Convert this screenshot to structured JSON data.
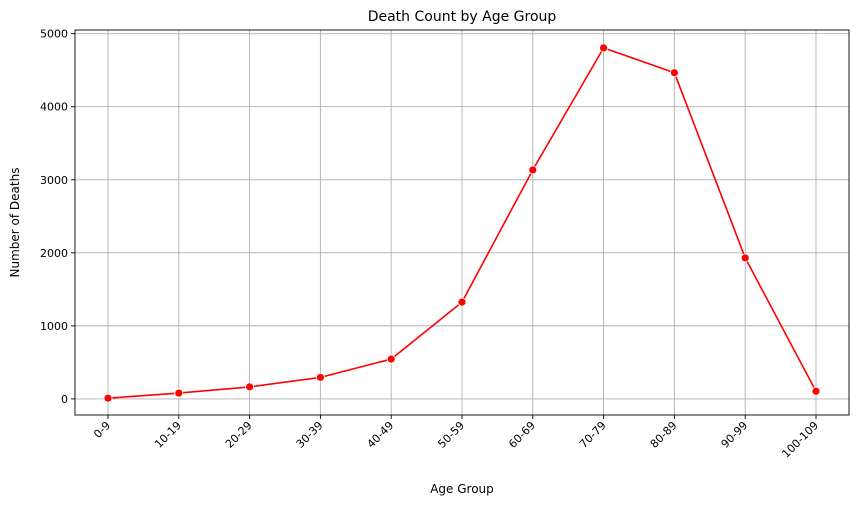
{
  "chart_data": {
    "type": "line",
    "title": "Death Count by Age Group",
    "xlabel": "Age Group",
    "ylabel": "Number of Deaths",
    "categories": [
      "0-9",
      "10-19",
      "20-29",
      "30-39",
      "40-49",
      "50-59",
      "60-69",
      "70-79",
      "80-89",
      "90-99",
      "100-109"
    ],
    "series": [
      {
        "values": [
          10,
          80,
          165,
          295,
          545,
          1325,
          3135,
          4805,
          4465,
          1930,
          105
        ],
        "color": "#ff0000",
        "marker": "circle"
      }
    ],
    "ylim": [
      -220,
      5050
    ],
    "yticks": [
      0,
      1000,
      2000,
      3000,
      4000,
      5000
    ],
    "grid": true,
    "x_tick_rotation": 45
  }
}
